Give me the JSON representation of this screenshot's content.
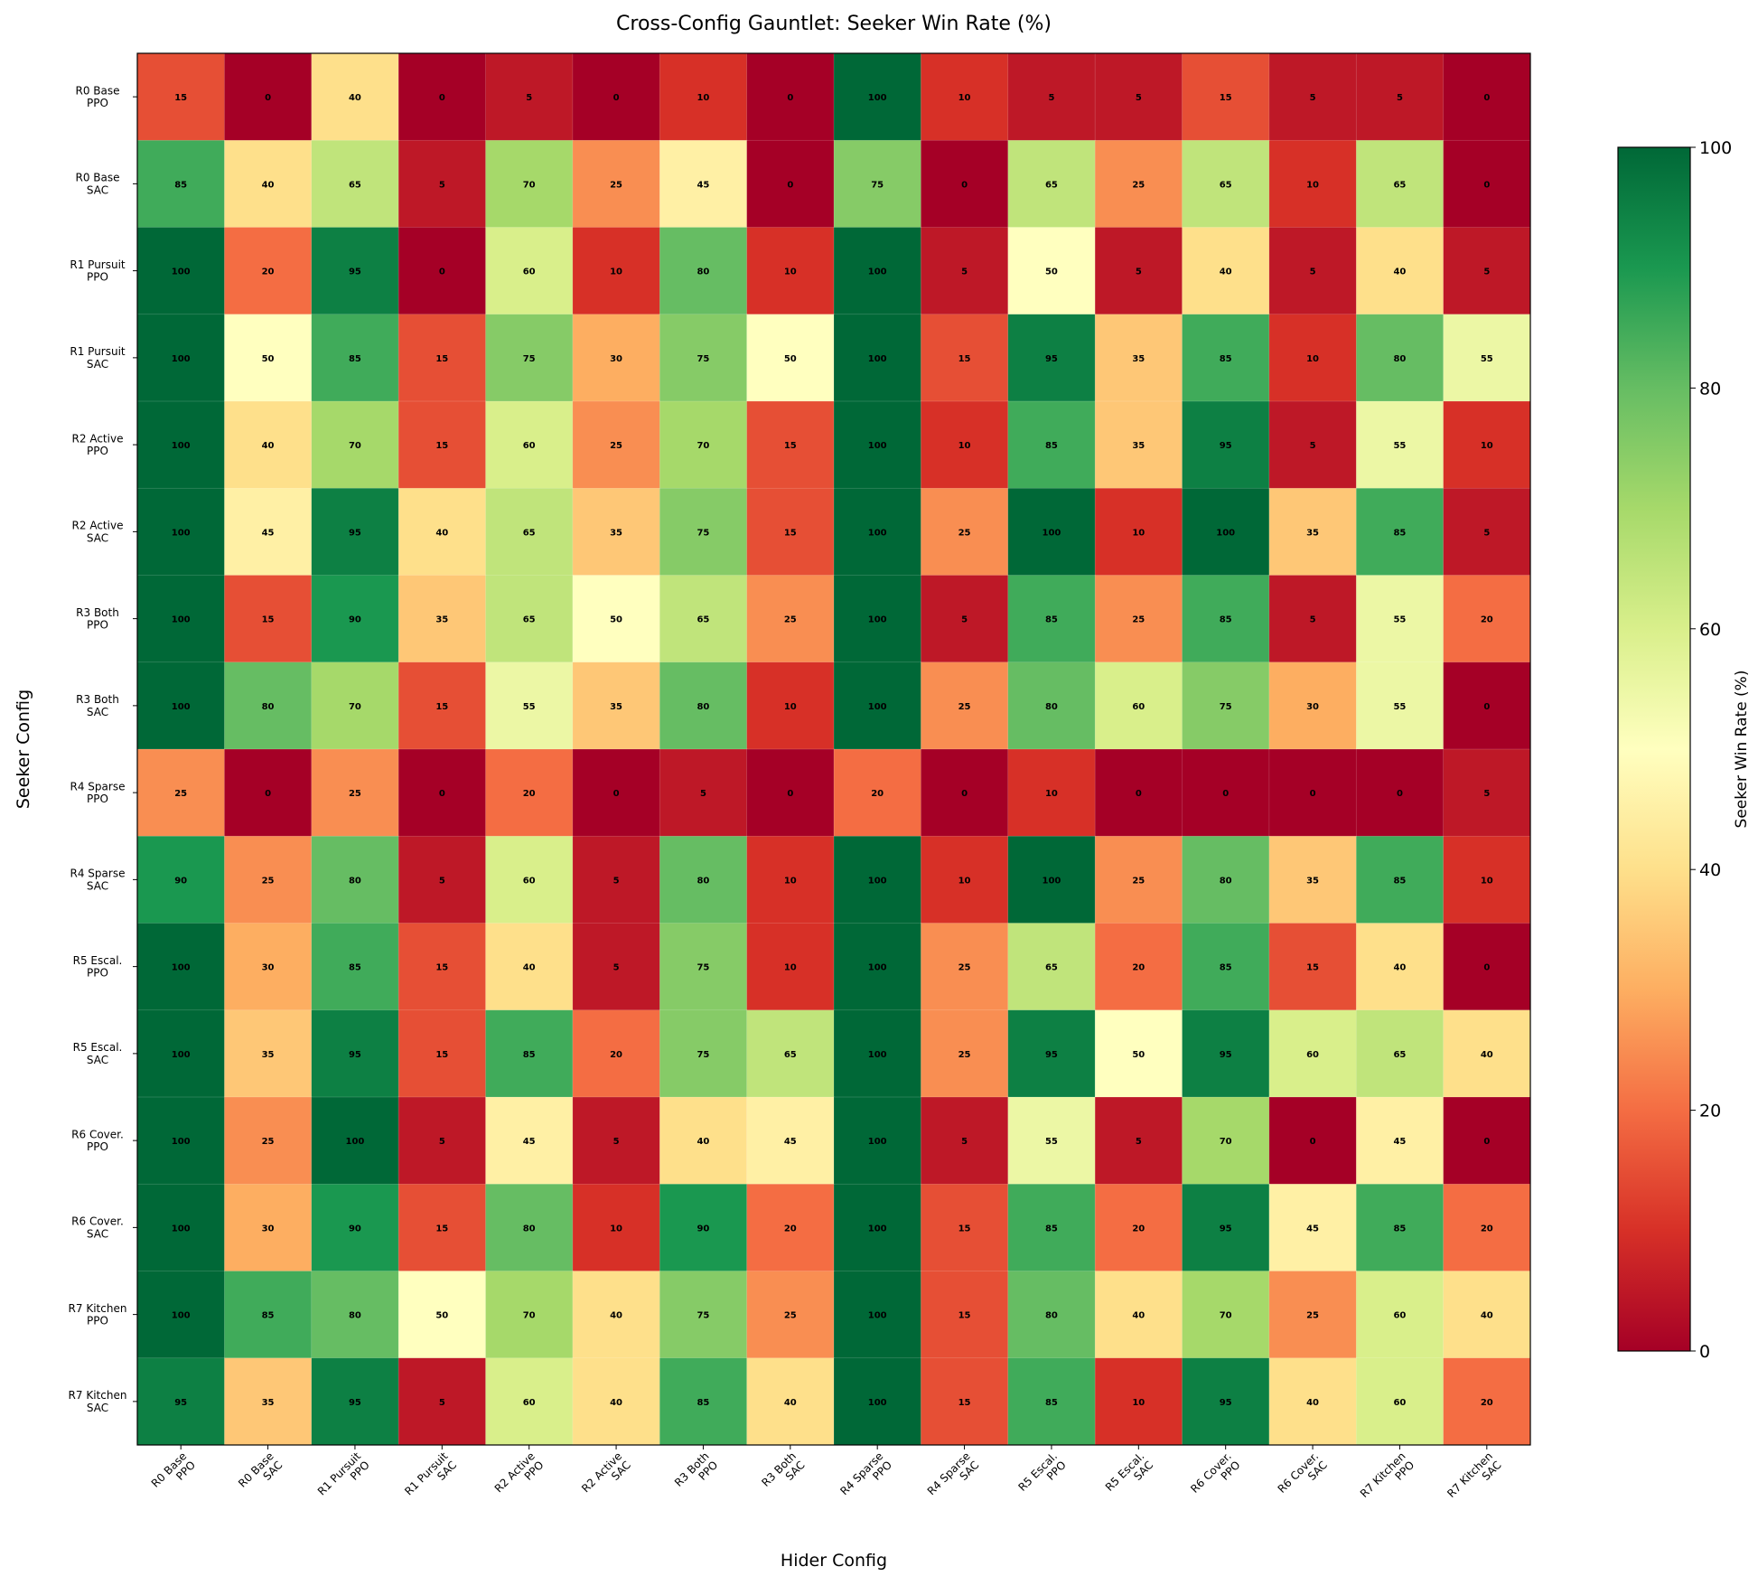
{
  "chart_data": {
    "type": "heatmap",
    "title": "Cross-Config Gauntlet: Seeker Win Rate (%)",
    "x_label": "Hider Config",
    "y_label": "Seeker Config",
    "x_categories": [
      "R0 Base\nPPO",
      "R0 Base\nSAC",
      "R1 Pursuit\nPPO",
      "R1 Pursuit\nSAC",
      "R2 Active\nPPO",
      "R2 Active\nSAC",
      "R3 Both\nPPO",
      "R3 Both\nSAC",
      "R4 Sparse\nPPO",
      "R4 Sparse\nSAC",
      "R5 Escal.\nPPO",
      "R5 Escal.\nSAC",
      "R6 Cover.\nPPO",
      "R6 Cover.\nSAC",
      "R7 Kitchen\nPPO",
      "R7 Kitchen\nSAC"
    ],
    "y_categories": [
      "R0 Base\nPPO",
      "R0 Base\nSAC",
      "R1 Pursuit\nPPO",
      "R1 Pursuit\nSAC",
      "R2 Active\nPPO",
      "R2 Active\nSAC",
      "R3 Both\nPPO",
      "R3 Both\nSAC",
      "R4 Sparse\nPPO",
      "R4 Sparse\nSAC",
      "R5 Escal.\nPPO",
      "R5 Escal.\nSAC",
      "R6 Cover.\nPPO",
      "R6 Cover.\nSAC",
      "R7 Kitchen\nPPO",
      "R7 Kitchen\nSAC"
    ],
    "values": [
      [
        15,
        0,
        40,
        0,
        5,
        0,
        10,
        0,
        100,
        10,
        5,
        5,
        15,
        5,
        5,
        0
      ],
      [
        85,
        40,
        65,
        5,
        70,
        25,
        45,
        0,
        75,
        0,
        65,
        25,
        65,
        10,
        65,
        0
      ],
      [
        100,
        20,
        95,
        0,
        60,
        10,
        80,
        10,
        100,
        5,
        50,
        5,
        40,
        5,
        40,
        5
      ],
      [
        100,
        50,
        85,
        15,
        75,
        30,
        75,
        50,
        100,
        15,
        95,
        35,
        85,
        10,
        80,
        55
      ],
      [
        100,
        40,
        70,
        15,
        60,
        25,
        70,
        15,
        100,
        10,
        85,
        35,
        95,
        5,
        55,
        10
      ],
      [
        100,
        45,
        95,
        40,
        65,
        35,
        75,
        15,
        100,
        25,
        100,
        10,
        100,
        35,
        85,
        5
      ],
      [
        100,
        15,
        90,
        35,
        65,
        50,
        65,
        25,
        100,
        5,
        85,
        25,
        85,
        5,
        55,
        20
      ],
      [
        100,
        80,
        70,
        15,
        55,
        35,
        80,
        10,
        100,
        25,
        80,
        60,
        75,
        30,
        55,
        0
      ],
      [
        25,
        0,
        25,
        0,
        20,
        0,
        5,
        0,
        20,
        0,
        10,
        0,
        0,
        0,
        0,
        5
      ],
      [
        90,
        25,
        80,
        5,
        60,
        5,
        80,
        10,
        100,
        10,
        100,
        25,
        80,
        35,
        85,
        10
      ],
      [
        100,
        30,
        85,
        15,
        40,
        5,
        75,
        10,
        100,
        25,
        65,
        20,
        85,
        15,
        40,
        0
      ],
      [
        100,
        35,
        95,
        15,
        85,
        20,
        75,
        65,
        100,
        25,
        95,
        50,
        95,
        60,
        65,
        40
      ],
      [
        100,
        25,
        100,
        5,
        45,
        5,
        40,
        45,
        100,
        5,
        55,
        5,
        70,
        0,
        45,
        0
      ],
      [
        100,
        30,
        90,
        15,
        80,
        10,
        90,
        20,
        100,
        15,
        85,
        20,
        95,
        45,
        85,
        20
      ],
      [
        100,
        85,
        80,
        50,
        70,
        40,
        75,
        25,
        100,
        15,
        80,
        40,
        70,
        25,
        60,
        40
      ],
      [
        95,
        35,
        95,
        5,
        60,
        40,
        85,
        40,
        100,
        15,
        85,
        10,
        95,
        40,
        60,
        20
      ]
    ],
    "colormap": [
      "#a50026",
      "#d73027",
      "#f46d43",
      "#fdae61",
      "#fee08b",
      "#ffffbf",
      "#d9ef8b",
      "#a6d96a",
      "#66bd63",
      "#1a9850",
      "#006837"
    ],
    "colorbar": {
      "label": "Seeker Win Rate (%)",
      "lim": [
        0,
        100
      ],
      "ticks": [
        0,
        20,
        40,
        60,
        80,
        100
      ]
    }
  }
}
